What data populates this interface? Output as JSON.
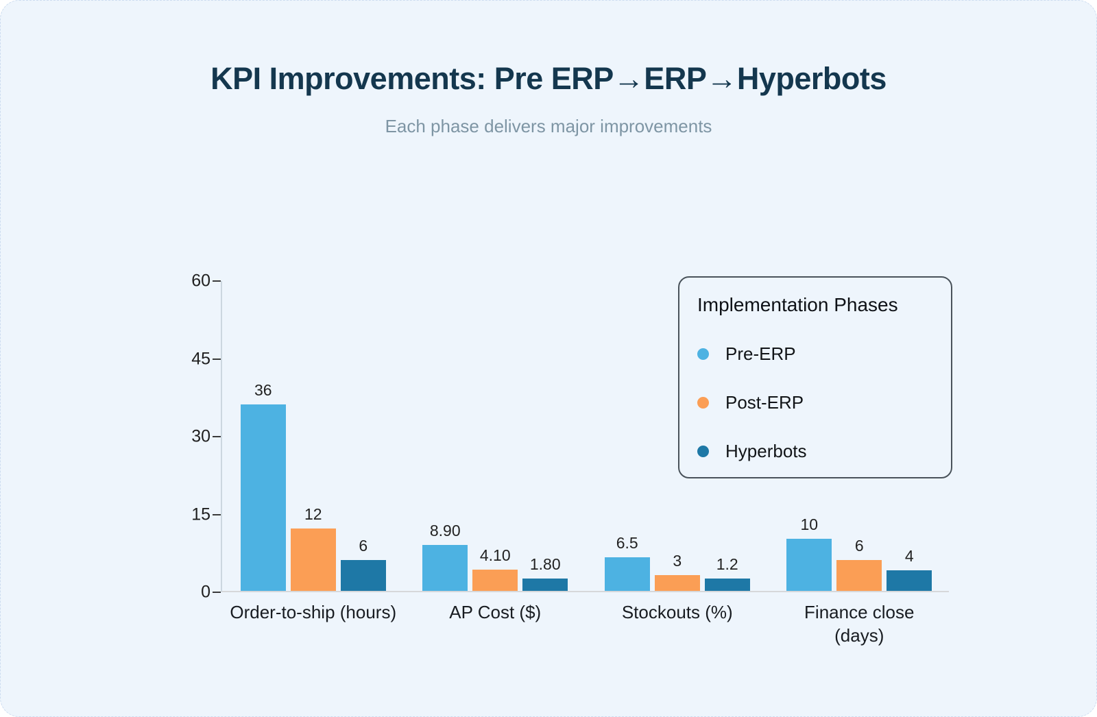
{
  "title": "KPI Improvements: Pre ERP→ERP→Hyperbots",
  "subtitle": "Each phase delivers major improvements",
  "legend": {
    "title": "Implementation Phases",
    "items": [
      {
        "label": "Pre-ERP",
        "color": "#4db2e2"
      },
      {
        "label": "Post-ERP",
        "color": "#fb9e55"
      },
      {
        "label": "Hyperbots",
        "color": "#1e78a6"
      }
    ]
  },
  "chart_data": {
    "type": "bar",
    "categories": [
      "Order-to-ship (hours)",
      "AP Cost ($)",
      "Stockouts (%)",
      "Finance close (days)"
    ],
    "category_label_lines": [
      [
        "Order-to-ship (hours)"
      ],
      [
        "AP Cost ($)"
      ],
      [
        "Stockouts (%)"
      ],
      [
        "Finance close",
        "(days)"
      ]
    ],
    "series": [
      {
        "name": "Pre-ERP",
        "color": "#4db2e2",
        "values": [
          36,
          8.9,
          6.5,
          10
        ],
        "labels": [
          "36",
          "8.90",
          "6.5",
          "10"
        ]
      },
      {
        "name": "Post-ERP",
        "color": "#fb9e55",
        "values": [
          12,
          4.1,
          3,
          6
        ],
        "labels": [
          "12",
          "4.10",
          "3",
          "6"
        ]
      },
      {
        "name": "Hyperbots",
        "color": "#1e78a6",
        "values": [
          6,
          1.8,
          1.2,
          4
        ],
        "labels": [
          "6",
          "1.80",
          "1.2",
          "4"
        ]
      }
    ],
    "title": "KPI Improvements: Pre ERP→ERP→Hyperbots",
    "xlabel": "",
    "ylabel": "",
    "yticks": [
      0,
      15,
      30,
      45,
      60
    ],
    "ylim": [
      0,
      60
    ],
    "grid": false,
    "legend_position": "top-right"
  },
  "colors": {
    "background": "#eef5fc",
    "title": "#14374e",
    "subtitle": "#7e95a4",
    "pre_erp": "#4db2e2",
    "post_erp": "#fb9e55",
    "hyperbots": "#1e78a6"
  }
}
